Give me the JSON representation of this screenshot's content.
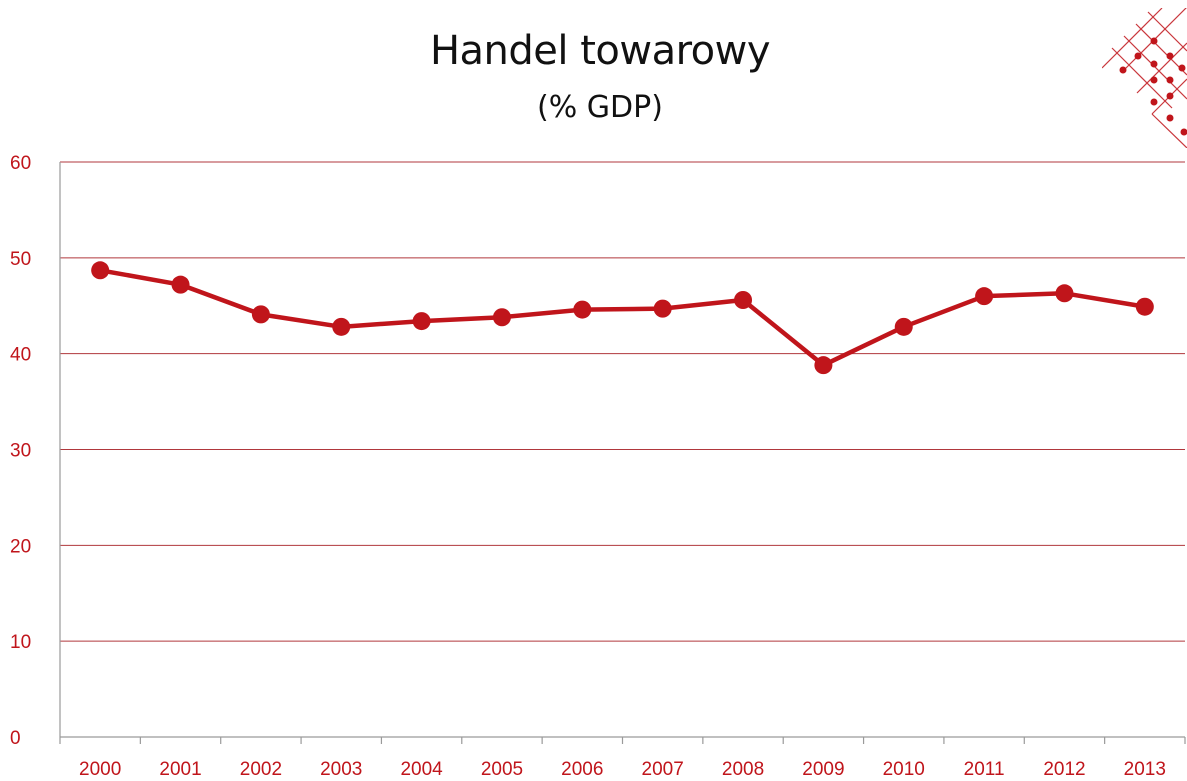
{
  "colors": {
    "accent": "#c0151b",
    "grid": "#b0373c",
    "axis": "#9a9a9a",
    "text": "#111111"
  },
  "logo": {
    "icon": "diamond-lattice-logo"
  },
  "chart_data": {
    "type": "line",
    "title": "Handel towarowy",
    "subtitle": "(% GDP)",
    "xlabel": "",
    "ylabel": "",
    "categories": [
      "2000",
      "2001",
      "2002",
      "2003",
      "2004",
      "2005",
      "2006",
      "2007",
      "2008",
      "2009",
      "2010",
      "2011",
      "2012",
      "2013"
    ],
    "series": [
      {
        "values": [
          48.7,
          47.2,
          44.1,
          42.8,
          43.4,
          43.8,
          44.6,
          44.7,
          45.6,
          38.8,
          42.8,
          46.0,
          46.3,
          44.9
        ]
      }
    ],
    "ylim": [
      0,
      60
    ],
    "yticks": [
      0,
      10,
      20,
      30,
      40,
      50,
      60
    ],
    "grid": true,
    "legend": "none"
  }
}
